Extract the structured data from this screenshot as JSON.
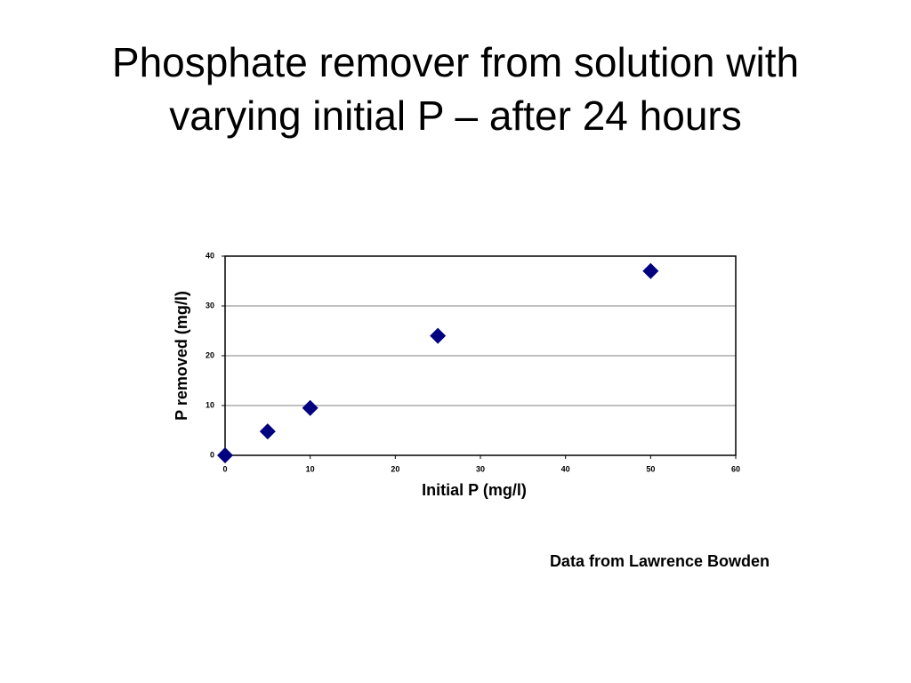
{
  "chart_data": {
    "type": "scatter",
    "title": "Phosphate remover from solution with varying initial P – after 24 hours",
    "x_label": "Initial P (mg/l)",
    "y_label": "P removed (mg/l)",
    "annotation": "Data from Lawrence Bowden",
    "x": [
      0,
      5,
      10,
      25,
      50
    ],
    "values": [
      0,
      4.8,
      9.5,
      24,
      37
    ],
    "color": "#000080",
    "marker": "diamond",
    "xlim": [
      0,
      60
    ],
    "xticks": [
      0,
      10,
      20,
      30,
      40,
      50,
      60
    ],
    "ylim": [
      0,
      40
    ],
    "yticks": [
      0,
      10,
      20,
      30,
      40
    ],
    "grid": true
  }
}
